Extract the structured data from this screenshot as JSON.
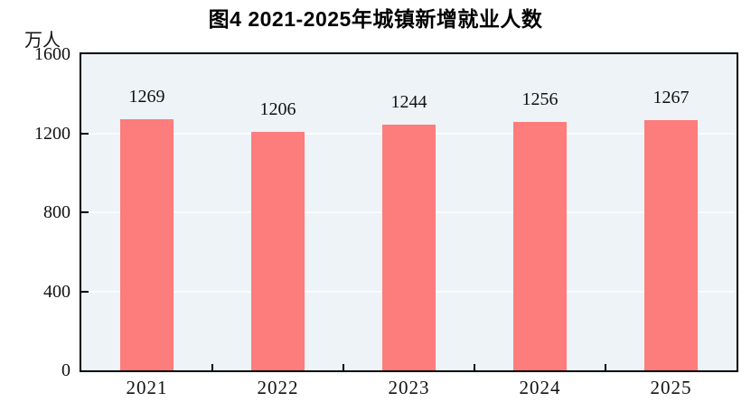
{
  "chart_data": {
    "type": "bar",
    "title": "图4  2021-2025年城镇新增就业人数",
    "unit_label": "万人",
    "categories": [
      "2021",
      "2022",
      "2023",
      "2024",
      "2025"
    ],
    "values": [
      1269,
      1206,
      1244,
      1256,
      1267
    ],
    "xlabel": "",
    "ylabel": "万人",
    "ylim": [
      0,
      1600
    ],
    "yticks": [
      0,
      400,
      800,
      1200,
      1600
    ],
    "grid": "horizontal gridlines at 400, 800, 1200",
    "legend": "none",
    "colors": {
      "bar": "#FD7C7C",
      "plot_background": "#EDF3F6",
      "gridline": "#FAFCFD",
      "axis": "#000000",
      "text": "#111111",
      "page_background": "#FFFFFF"
    }
  }
}
